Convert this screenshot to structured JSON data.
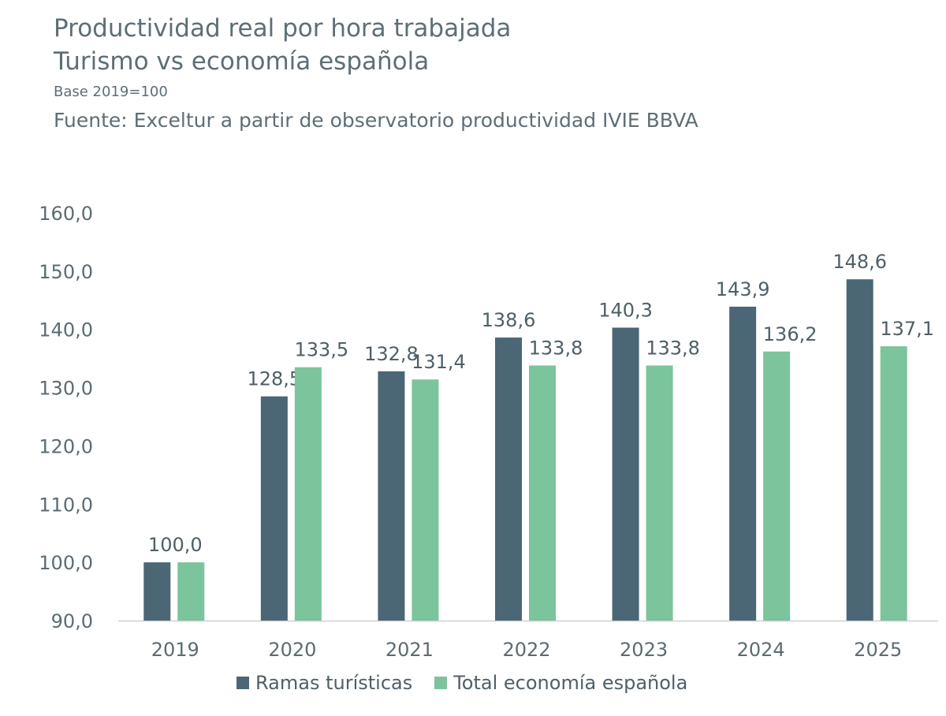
{
  "chart_data": {
    "type": "bar",
    "title": "Productividad real por hora trabajada",
    "subtitle": "Turismo vs economía española",
    "note": "Base 2019=100",
    "source": "Fuente: Exceltur a partir de observatorio productividad IVIE BBVA",
    "categories": [
      "2019",
      "2020",
      "2021",
      "2022",
      "2023",
      "2024",
      "2025"
    ],
    "series": [
      {
        "name": "Ramas turísticas",
        "color": "#4b6775",
        "values": [
          100.0,
          128.5,
          132.8,
          138.6,
          140.3,
          143.9,
          148.6
        ],
        "labels": [
          "100,0",
          "128,5",
          "132,8",
          "138,6",
          "140,3",
          "143,9",
          "148,6"
        ]
      },
      {
        "name": "Total economía española",
        "color": "#7bc49c",
        "values": [
          100.0,
          133.5,
          131.4,
          133.8,
          133.8,
          136.2,
          137.1
        ],
        "labels": [
          "100,0",
          "133,5",
          "131,4",
          "133,8",
          "133,8",
          "136,2",
          "137,1"
        ]
      }
    ],
    "ylim": [
      90,
      160
    ],
    "yticks": [
      "90,0",
      "100,0",
      "110,0",
      "120,0",
      "130,0",
      "140,0",
      "150,0",
      "160,0"
    ],
    "grid": false,
    "legend": "bottom"
  }
}
